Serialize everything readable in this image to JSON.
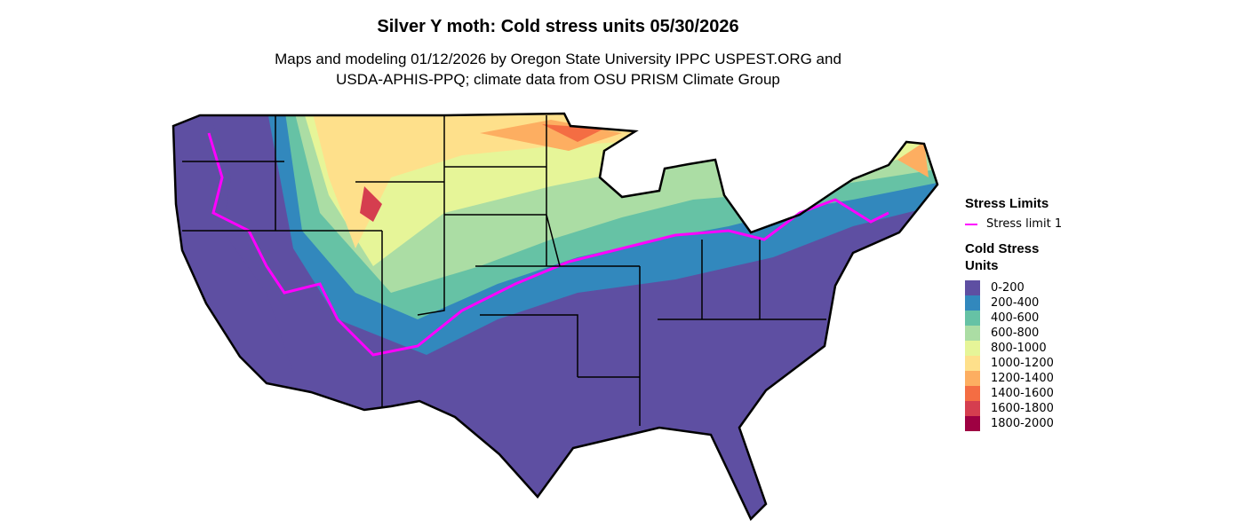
{
  "title": "Silver Y moth: Cold stress units 05/30/2026",
  "subtitle_line1": "Maps and modeling 01/12/2026 by Oregon State University IPPC USPEST.ORG and",
  "subtitle_line2": "USDA-APHIS-PPQ; climate data from OSU PRISM Climate Group",
  "legend": {
    "stress_title": "Stress Limits",
    "stress_item": "Stress limit 1",
    "stress_color": "#ff00ff",
    "units_title_1": "Cold Stress",
    "units_title_2": "Units",
    "classes": [
      {
        "label": "0-200",
        "color": "#5E4FA2"
      },
      {
        "label": "200-400",
        "color": "#3288BD"
      },
      {
        "label": "400-600",
        "color": "#66C2A5"
      },
      {
        "label": "600-800",
        "color": "#ABDDA4"
      },
      {
        "label": "800-1000",
        "color": "#E6F598"
      },
      {
        "label": "1000-1200",
        "color": "#FEE08B"
      },
      {
        "label": "1200-1400",
        "color": "#FDAE61"
      },
      {
        "label": "1400-1600",
        "color": "#F46D43"
      },
      {
        "label": "1600-1800",
        "color": "#D53E4F"
      },
      {
        "label": "1800-2000",
        "color": "#9E0142"
      }
    ]
  }
}
